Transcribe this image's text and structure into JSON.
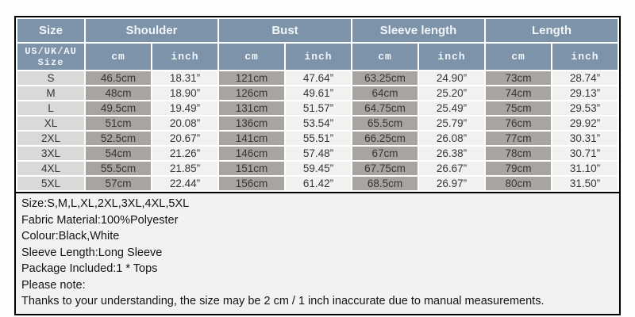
{
  "colors": {
    "header-bg": "#7c93a9",
    "header-text": "#f2f5f8",
    "size-cell-bg": "#d9d9d8",
    "cm-cell-bg": "#a8a5a0",
    "inch-cell-bg": "#f1f1ef",
    "data-text": "#363636",
    "notes-bg": "#f2f2f0",
    "notes-text": "#141414"
  },
  "table": {
    "header_groups": {
      "size": "Size",
      "shoulder": "Shoulder",
      "bust": "Bust",
      "sleeve": "Sleeve length",
      "length": "Length"
    },
    "subheader": {
      "size_label": "US/UK/AU Size",
      "cm": "cm",
      "inch": "inch"
    },
    "rows": [
      [
        "S",
        "46.5cm",
        "18.31”",
        "121cm",
        "47.64”",
        "63.25cm",
        "24.90”",
        "73cm",
        "28.74”"
      ],
      [
        "M",
        "48cm",
        "18.90”",
        "126cm",
        "49.61”",
        "64cm",
        "25.20”",
        "74cm",
        "29.13”"
      ],
      [
        "L",
        "49.5cm",
        "19.49”",
        "131cm",
        "51.57”",
        "64.75cm",
        "25.49”",
        "75cm",
        "29.53”"
      ],
      [
        "XL",
        "51cm",
        "20.08”",
        "136cm",
        "53.54”",
        "65.5cm",
        "25.79”",
        "76cm",
        "29.92”"
      ],
      [
        "2XL",
        "52.5cm",
        "20.67”",
        "141cm",
        "55.51”",
        "66.25cm",
        "26.08”",
        "77cm",
        "30.31”"
      ],
      [
        "3XL",
        "54cm",
        "21.26”",
        "146cm",
        "57.48”",
        "67cm",
        "26.38”",
        "78cm",
        "30.71”"
      ],
      [
        "4XL",
        "55.5cm",
        "21.85”",
        "151cm",
        "59.45”",
        "67.75cm",
        "26.67”",
        "79cm",
        "31.10”"
      ],
      [
        "5XL",
        "57cm",
        "22.44”",
        "156cm",
        "61.42”",
        "68.5cm",
        "26.97”",
        "80cm",
        "31.50”"
      ]
    ]
  },
  "notes": {
    "lines": [
      "Size:S,M,L,XL,2XL,3XL,4XL,5XL",
      "Fabric Material:100%Polyester",
      "Colour:Black,White",
      "Sleeve Length:Long Sleeve",
      "Package Included:1 * Tops",
      "Please note:",
      "Thanks to your understanding, the size may be 2 cm / 1 inch inaccurate due to manual measurements."
    ]
  }
}
